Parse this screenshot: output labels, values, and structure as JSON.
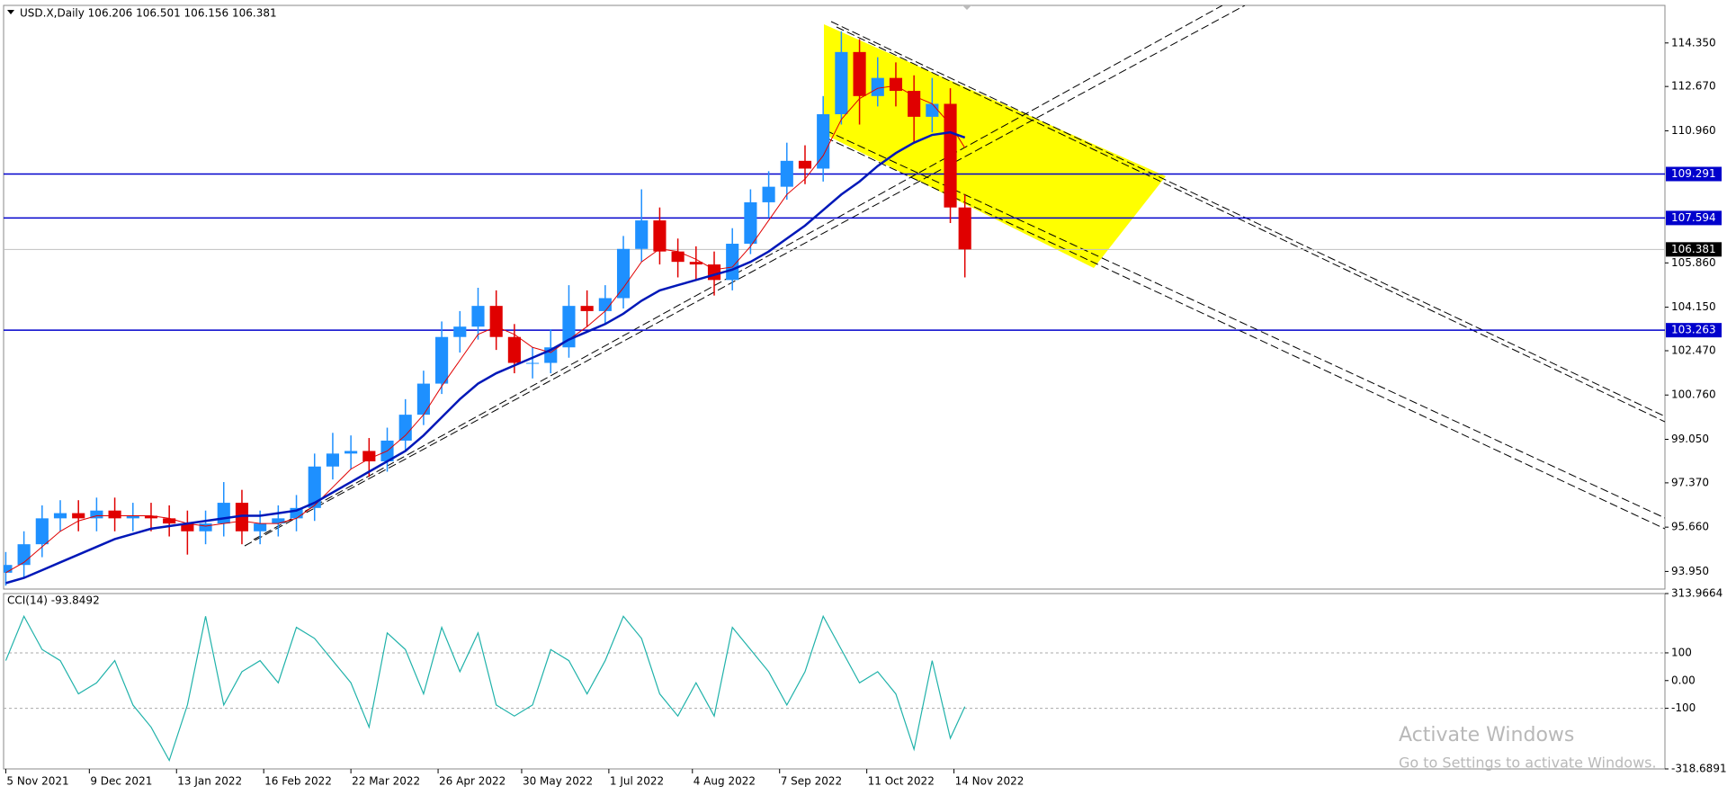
{
  "chart_data": [
    {
      "type": "candlestick",
      "title": "USD.X,Daily  106.206 106.501 106.156 106.381",
      "x": [
        0,
        5,
        10,
        15,
        20,
        25,
        30,
        35,
        40,
        45,
        50,
        55,
        60,
        65,
        70,
        75,
        80,
        85,
        90,
        95,
        100,
        105,
        110,
        115,
        120,
        125,
        130,
        135,
        140,
        145,
        150,
        155,
        160,
        165,
        170,
        175,
        180,
        185,
        190,
        195,
        200,
        205,
        210,
        215,
        220,
        225,
        230,
        235,
        240,
        245,
        250,
        255,
        260,
        264
      ],
      "open": [
        93.9,
        94.2,
        95.0,
        96.0,
        96.2,
        96.0,
        96.3,
        96.0,
        96.1,
        96.0,
        95.8,
        95.5,
        95.8,
        96.6,
        95.5,
        95.8,
        96.0,
        96.4,
        98.0,
        98.5,
        98.6,
        98.2,
        99.0,
        100.0,
        101.2,
        103.0,
        103.4,
        104.2,
        103.0,
        102.0,
        102.0,
        102.6,
        104.2,
        104.0,
        104.5,
        106.4,
        107.5,
        106.3,
        105.9,
        105.8,
        105.2,
        106.6,
        108.2,
        108.8,
        109.8,
        109.5,
        111.6,
        114.0,
        112.3,
        113.0,
        112.5,
        111.5,
        112.0,
        108.0
      ],
      "high": [
        94.7,
        95.5,
        96.5,
        96.7,
        96.7,
        96.8,
        96.8,
        96.6,
        96.6,
        96.5,
        96.3,
        96.3,
        97.4,
        97.1,
        96.3,
        96.5,
        96.9,
        98.5,
        99.3,
        99.2,
        99.1,
        99.5,
        100.6,
        101.7,
        103.6,
        104.0,
        104.9,
        104.8,
        103.5,
        102.6,
        103.3,
        105.0,
        104.8,
        105.0,
        106.9,
        108.7,
        108.0,
        106.8,
        106.5,
        106.3,
        107.2,
        108.7,
        109.4,
        110.5,
        110.4,
        112.3,
        114.8,
        114.5,
        113.8,
        113.6,
        113.1,
        113.0,
        112.6,
        108.5
      ],
      "low": [
        93.4,
        93.7,
        94.5,
        95.5,
        95.5,
        95.5,
        95.5,
        95.5,
        95.5,
        95.3,
        94.6,
        95.0,
        95.3,
        95.0,
        95.0,
        95.3,
        95.5,
        95.9,
        97.5,
        97.9,
        97.6,
        97.8,
        98.6,
        99.6,
        100.8,
        102.4,
        102.9,
        102.5,
        101.6,
        101.4,
        101.6,
        102.2,
        103.4,
        103.5,
        104.1,
        105.9,
        105.8,
        105.3,
        105.2,
        104.6,
        104.8,
        106.2,
        107.6,
        108.3,
        108.9,
        109.0,
        111.2,
        111.2,
        111.9,
        111.9,
        110.5,
        110.9,
        107.4,
        105.3
      ],
      "close": [
        94.2,
        95.0,
        96.0,
        96.2,
        96.0,
        96.3,
        96.0,
        96.1,
        96.0,
        95.8,
        95.5,
        95.8,
        96.6,
        95.5,
        95.8,
        96.0,
        96.4,
        98.0,
        98.5,
        98.6,
        98.2,
        99.0,
        100.0,
        101.2,
        103.0,
        103.4,
        104.2,
        103.0,
        102.0,
        102.0,
        102.6,
        104.2,
        104.0,
        104.5,
        106.4,
        107.5,
        106.3,
        105.9,
        105.8,
        105.2,
        106.6,
        108.2,
        108.8,
        109.8,
        109.5,
        111.6,
        114.0,
        112.3,
        113.0,
        112.5,
        111.5,
        112.0,
        108.0,
        106.381
      ],
      "up_color": "#1e90ff",
      "down_color": "#e00000",
      "series": [
        {
          "color": "#e00000",
          "values": [
            93.9,
            94.3,
            94.9,
            95.5,
            95.9,
            96.1,
            96.1,
            96.1,
            96.1,
            96.0,
            95.8,
            95.7,
            95.8,
            95.9,
            95.8,
            95.8,
            96.0,
            96.5,
            97.2,
            97.9,
            98.3,
            98.6,
            99.2,
            100.0,
            101.1,
            102.1,
            103.1,
            103.4,
            103.1,
            102.6,
            102.4,
            102.9,
            103.4,
            104.0,
            104.9,
            105.9,
            106.4,
            106.3,
            106.0,
            105.6,
            105.7,
            106.5,
            107.5,
            108.5,
            109.1,
            110.0,
            111.4,
            112.2,
            112.6,
            112.7,
            112.3,
            112.0,
            111.2,
            110.3
          ]
        },
        {
          "color": "#0018b8",
          "values": [
            93.5,
            93.7,
            94.0,
            94.3,
            94.6,
            94.9,
            95.2,
            95.4,
            95.6,
            95.7,
            95.8,
            95.9,
            96.0,
            96.1,
            96.1,
            96.2,
            96.3,
            96.6,
            97.0,
            97.4,
            97.8,
            98.2,
            98.6,
            99.2,
            99.9,
            100.6,
            101.2,
            101.6,
            101.9,
            102.2,
            102.5,
            102.9,
            103.2,
            103.5,
            103.9,
            104.4,
            104.8,
            105.0,
            105.2,
            105.4,
            105.6,
            105.9,
            106.3,
            106.8,
            107.3,
            107.9,
            108.5,
            109.0,
            109.6,
            110.1,
            110.5,
            110.8,
            110.9,
            110.7
          ]
        }
      ],
      "hlines": [
        109.291,
        107.594,
        103.263
      ],
      "hline_color": "#0000cc",
      "last_price": 106.381,
      "xlim": [
        -0.6,
        456.7
      ],
      "ylim": [
        93.27,
        115.8
      ],
      "yticks": [
        {
          "value": 114.35,
          "label": "114.350"
        },
        {
          "value": 112.67,
          "label": "112.670"
        },
        {
          "value": 110.96,
          "label": "110.960"
        },
        {
          "value": 105.86,
          "label": "105.860"
        },
        {
          "value": 104.15,
          "label": "104.150"
        },
        {
          "value": 102.47,
          "label": "102.470"
        },
        {
          "value": 100.76,
          "label": "100.760"
        },
        {
          "value": 99.05,
          "label": "99.050"
        },
        {
          "value": 97.37,
          "label": "97.370"
        },
        {
          "value": 95.66,
          "label": "95.660"
        },
        {
          "value": 93.95,
          "label": "93.950"
        }
      ],
      "xticks": [
        {
          "value": 0,
          "label": "5 Nov 2021"
        },
        {
          "value": 23,
          "label": "9 Dec 2021"
        },
        {
          "value": 47,
          "label": "13 Jan 2022"
        },
        {
          "value": 71,
          "label": "16 Feb 2022"
        },
        {
          "value": 95,
          "label": "22 Mar 2022"
        },
        {
          "value": 119,
          "label": "26 Apr 2022"
        },
        {
          "value": 142,
          "label": "30 May 2022"
        },
        {
          "value": 166,
          "label": "1 Jul 2022"
        },
        {
          "value": 189,
          "label": "4 Aug 2022"
        },
        {
          "value": 213,
          "label": "7 Sep 2022"
        },
        {
          "value": 237,
          "label": "11 Oct 2022"
        },
        {
          "value": 261,
          "label": "14 Nov 2022"
        }
      ]
    },
    {
      "type": "line",
      "title": "CCI(14) -93.8492",
      "x": [
        0,
        5,
        10,
        15,
        20,
        25,
        30,
        35,
        40,
        45,
        50,
        55,
        60,
        65,
        70,
        75,
        80,
        85,
        90,
        95,
        100,
        105,
        110,
        115,
        120,
        125,
        130,
        135,
        140,
        145,
        150,
        155,
        160,
        165,
        170,
        175,
        180,
        185,
        190,
        195,
        200,
        205,
        210,
        215,
        220,
        225,
        230,
        235,
        240,
        245,
        250,
        255,
        260,
        264
      ],
      "series": [
        {
          "color": "#20b2aa",
          "values": [
            72,
            232,
            112,
            72,
            -48,
            -8,
            72,
            -88,
            -168,
            -288,
            -88,
            232,
            -88,
            32,
            72,
            -8,
            192,
            152,
            72,
            -8,
            -168,
            172,
            112,
            -48,
            192,
            32,
            172,
            -88,
            -128,
            -88,
            112,
            72,
            -48,
            72,
            232,
            152,
            -48,
            -128,
            -8,
            -128,
            192,
            112,
            32,
            -88,
            32,
            232,
            112,
            -8,
            32,
            -48,
            -248,
            72,
            -208,
            -93.8492
          ]
        }
      ],
      "xlim": [
        -0.6,
        456.7
      ],
      "ylim": [
        -318.6891,
        313.9664
      ],
      "yticks": [
        313.9664,
        100,
        {
          "value": 0,
          "label": "0.00"
        },
        -100,
        -318.6891
      ],
      "level_lines": [
        100,
        -100
      ]
    }
  ],
  "watermark": {
    "title": "Activate Windows",
    "text": "Go to Settings to activate Windows."
  }
}
